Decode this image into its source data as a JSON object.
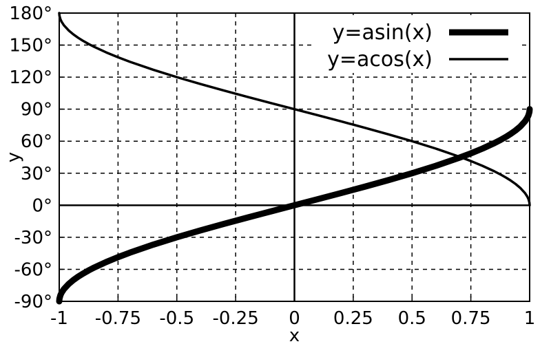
{
  "chart_data": {
    "type": "line",
    "title": "",
    "xlabel": "x",
    "ylabel": "y",
    "xlim": [
      -1,
      1
    ],
    "ylim": [
      -90,
      180
    ],
    "grid": true,
    "legend_position": "top-right",
    "x_ticks": [
      {
        "value": -1,
        "label": "-1"
      },
      {
        "value": -0.75,
        "label": "-0.75"
      },
      {
        "value": -0.5,
        "label": "-0.5"
      },
      {
        "value": -0.25,
        "label": "-0.25"
      },
      {
        "value": 0,
        "label": "0"
      },
      {
        "value": 0.25,
        "label": "0.25"
      },
      {
        "value": 0.5,
        "label": "0.5"
      },
      {
        "value": 0.75,
        "label": "0.75"
      },
      {
        "value": 1,
        "label": "1"
      }
    ],
    "y_ticks": [
      {
        "value": -90,
        "label": "-90°"
      },
      {
        "value": -60,
        "label": "-60°"
      },
      {
        "value": -30,
        "label": "-30°"
      },
      {
        "value": 0,
        "label": "0°"
      },
      {
        "value": 30,
        "label": "30°"
      },
      {
        "value": 60,
        "label": "60°"
      },
      {
        "value": 90,
        "label": "90°"
      },
      {
        "value": 120,
        "label": "120°"
      },
      {
        "value": 150,
        "label": "150°"
      },
      {
        "value": 180,
        "label": "180°"
      }
    ],
    "series": [
      {
        "name": "y=asin(x)",
        "color": "#000000",
        "style": "thick",
        "x": [
          -1,
          -0.999,
          -0.995,
          -0.99,
          -0.98,
          -0.96,
          -0.94,
          -0.92,
          -0.9,
          -0.875,
          -0.85,
          -0.8,
          -0.75,
          -0.7,
          -0.6,
          -0.5,
          -0.4,
          -0.3,
          -0.2,
          -0.1,
          0,
          0.1,
          0.2,
          0.3,
          0.4,
          0.5,
          0.6,
          0.7,
          0.75,
          0.8,
          0.85,
          0.875,
          0.9,
          0.92,
          0.94,
          0.96,
          0.98,
          0.99,
          0.995,
          0.999,
          1
        ],
        "y": [
          -90,
          -87.44,
          -84.27,
          -81.89,
          -78.52,
          -73.74,
          -70.05,
          -66.93,
          -64.16,
          -61.04,
          -58.21,
          -53.13,
          -48.59,
          -44.43,
          -36.87,
          -30,
          -23.58,
          -17.46,
          -11.54,
          -5.74,
          0,
          5.74,
          11.54,
          17.46,
          23.58,
          30,
          36.87,
          44.43,
          48.59,
          53.13,
          58.21,
          61.04,
          64.16,
          66.93,
          70.05,
          73.74,
          78.52,
          81.89,
          84.27,
          87.44,
          90
        ]
      },
      {
        "name": "y=acos(x)",
        "color": "#000000",
        "style": "thin",
        "x": [
          -1,
          -0.999,
          -0.995,
          -0.99,
          -0.98,
          -0.96,
          -0.94,
          -0.92,
          -0.9,
          -0.875,
          -0.85,
          -0.8,
          -0.75,
          -0.7,
          -0.6,
          -0.5,
          -0.4,
          -0.3,
          -0.2,
          -0.1,
          0,
          0.1,
          0.2,
          0.3,
          0.4,
          0.5,
          0.6,
          0.7,
          0.75,
          0.8,
          0.85,
          0.875,
          0.9,
          0.92,
          0.94,
          0.96,
          0.98,
          0.99,
          0.995,
          0.999,
          1
        ],
        "y": [
          180,
          177.44,
          174.27,
          171.89,
          168.52,
          163.74,
          160.05,
          156.93,
          154.16,
          151.04,
          148.21,
          143.13,
          138.59,
          134.43,
          126.87,
          120,
          113.58,
          107.46,
          101.54,
          95.74,
          90,
          84.26,
          78.46,
          72.54,
          66.42,
          60,
          53.13,
          45.57,
          41.41,
          36.87,
          31.79,
          28.96,
          25.84,
          23.07,
          19.95,
          16.26,
          11.48,
          8.11,
          5.73,
          2.56,
          0
        ]
      }
    ]
  }
}
